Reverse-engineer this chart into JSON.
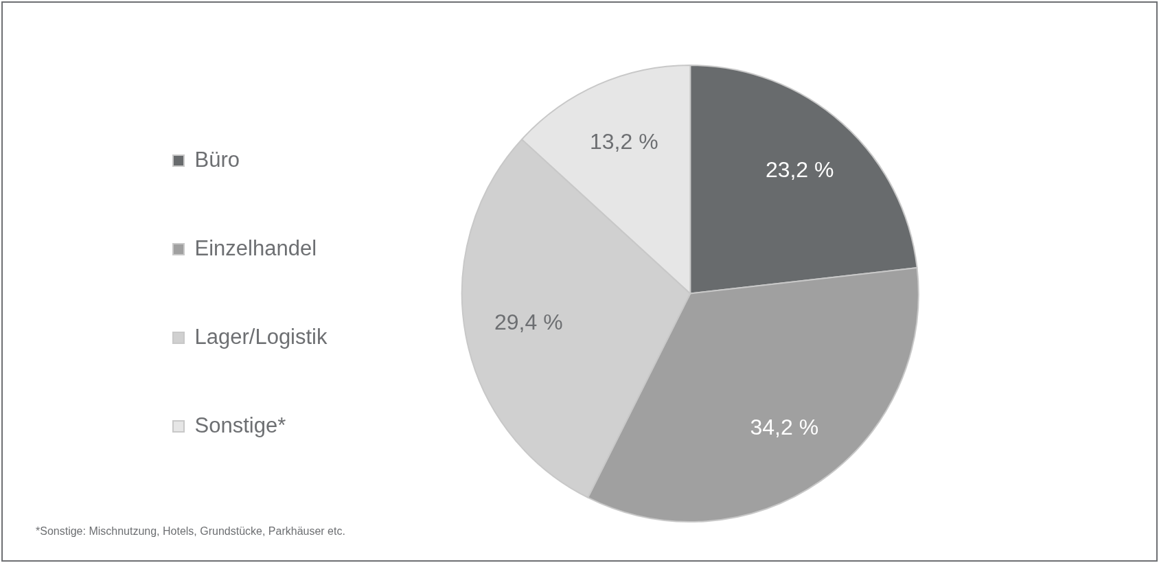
{
  "chart_data": {
    "type": "pie",
    "categories": [
      "Büro",
      "Einzelhandel",
      "Lager/Logistik",
      "Sonstige*"
    ],
    "values": [
      23.2,
      34.2,
      29.4,
      13.2
    ],
    "colors": [
      "#686b6d",
      "#a0a0a0",
      "#d0d0d0",
      "#e6e6e6"
    ],
    "value_labels": [
      "23,2 %",
      "34,2 %",
      "29,4 %",
      "13,2 %"
    ],
    "legend": "left",
    "annotations": [
      "*Sonstige: Mischnutzung, Hotels, Grundstücke, Parkhäuser etc."
    ]
  }
}
